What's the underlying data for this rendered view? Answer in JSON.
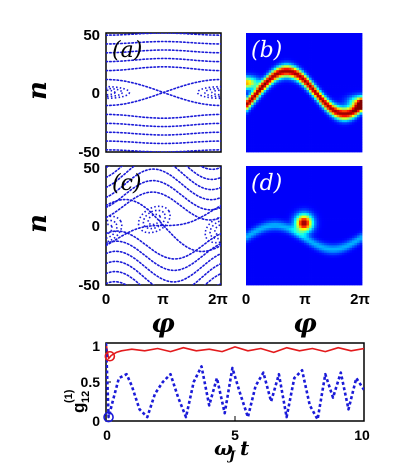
{
  "panels": [
    {
      "label": "(a)",
      "label_color": "#000000",
      "kind": "phase-portrait-symmetric"
    },
    {
      "label": "(b)",
      "label_color": "#ffffff",
      "kind": "heatmap-double-well"
    },
    {
      "label": "(c)",
      "label_color": "#000000",
      "kind": "phase-portrait-tilted"
    },
    {
      "label": "(d)",
      "label_color": "#ffffff",
      "kind": "heatmap-localized"
    }
  ],
  "phase_axes": {
    "y_label": "n",
    "x_label": "φ",
    "y_ticks": [
      "50",
      "0",
      "-50"
    ],
    "x_ticks": [
      "0",
      "π",
      "2π"
    ],
    "y_range": [
      -50,
      50
    ],
    "x_range": [
      0,
      6.2832
    ]
  },
  "colors": {
    "dots": "#1a1ad8",
    "red_line": "#e31a1c",
    "heat_bg": "#00008b"
  },
  "chart_data": {
    "type": "line",
    "xlabel": "ωJ t",
    "ylabel": "g12(1)",
    "xlim": [
      0,
      10
    ],
    "ylim": [
      0,
      1
    ],
    "x_ticks": [
      "0",
      "5",
      "10"
    ],
    "y_ticks": [
      "1",
      "0.5",
      "0"
    ],
    "series": [
      {
        "style": "solid-red",
        "x": [
          0,
          0.1,
          0.2,
          0.4,
          0.6,
          0.8,
          1.0,
          1.5,
          2.0,
          2.5,
          3.0,
          3.5,
          4.0,
          4.5,
          5.0,
          5.5,
          6.0,
          6.5,
          7.0,
          7.5,
          8.0,
          8.5,
          9.0,
          9.5,
          10.0
        ],
        "values": [
          1.0,
          0.8,
          0.84,
          0.88,
          0.9,
          0.91,
          0.92,
          0.9,
          0.93,
          0.89,
          0.94,
          0.9,
          0.92,
          0.89,
          0.95,
          0.9,
          0.93,
          0.88,
          0.94,
          0.9,
          0.93,
          0.89,
          0.94,
          0.9,
          0.93
        ]
      },
      {
        "style": "dashed-blue",
        "x": [
          0,
          0.1,
          0.3,
          0.5,
          0.8,
          1.0,
          1.3,
          1.6,
          1.9,
          2.2,
          2.5,
          2.8,
          3.1,
          3.4,
          3.7,
          4.0,
          4.3,
          4.6,
          4.9,
          5.2,
          5.5,
          5.8,
          6.1,
          6.4,
          6.7,
          7.0,
          7.3,
          7.6,
          7.9,
          8.2,
          8.5,
          8.8,
          9.1,
          9.4,
          9.7,
          10.0
        ],
        "values": [
          1.0,
          0.05,
          0.3,
          0.55,
          0.6,
          0.45,
          0.15,
          0.05,
          0.35,
          0.5,
          0.6,
          0.3,
          0.05,
          0.5,
          0.7,
          0.2,
          0.55,
          0.1,
          0.68,
          0.35,
          0.05,
          0.45,
          0.62,
          0.25,
          0.6,
          0.05,
          0.55,
          0.65,
          0.2,
          0.02,
          0.6,
          0.3,
          0.62,
          0.15,
          0.55,
          0.4
        ]
      }
    ],
    "markers": [
      {
        "series": 0,
        "x": 0.15,
        "y": 0.83,
        "shape": "open-circle"
      },
      {
        "series": 1,
        "x": 0.1,
        "y": 0.05,
        "shape": "open-circle"
      }
    ]
  }
}
